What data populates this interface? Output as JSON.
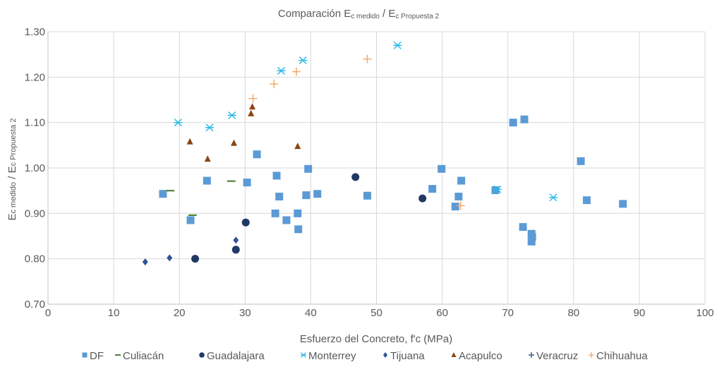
{
  "chart_data": {
    "type": "scatter",
    "title": {
      "main": "Comparación E",
      "sub1": "c medido",
      "sep": " / E",
      "sub2": "c Propuesta 2"
    },
    "xlabel": "Esfuerzo del Concreto, f'c (MPa)",
    "ylabel": {
      "a": "E",
      "b": "c medido",
      "c": " / E",
      "d": "c Propuesta 2"
    },
    "xlim": [
      0,
      100
    ],
    "ylim": [
      0.7,
      1.3
    ],
    "x_ticks": [
      "0",
      "10",
      "20",
      "30",
      "40",
      "50",
      "60",
      "70",
      "80",
      "90",
      "100"
    ],
    "y_ticks": [
      "0.70",
      "0.80",
      "0.90",
      "1.00",
      "1.10",
      "1.20",
      "1.30"
    ],
    "grid": true,
    "legend_position": "bottom",
    "series": [
      {
        "name": "DF",
        "marker": "square",
        "color": "#5b9bd5",
        "points": [
          [
            17.5,
            0.943
          ],
          [
            21.7,
            0.885
          ],
          [
            24.2,
            0.972
          ],
          [
            30.3,
            0.968
          ],
          [
            31.8,
            1.03
          ],
          [
            34.6,
            0.9
          ],
          [
            34.8,
            0.983
          ],
          [
            35.2,
            0.937
          ],
          [
            36.3,
            0.885
          ],
          [
            38.0,
            0.9
          ],
          [
            38.1,
            0.865
          ],
          [
            39.3,
            0.94
          ],
          [
            39.6,
            0.998
          ],
          [
            41.0,
            0.943
          ],
          [
            48.6,
            0.939
          ],
          [
            58.5,
            0.954
          ],
          [
            59.9,
            0.998
          ],
          [
            62.0,
            0.915
          ],
          [
            62.5,
            0.937
          ],
          [
            62.9,
            0.972
          ],
          [
            68.1,
            0.951
          ],
          [
            70.8,
            1.1
          ],
          [
            72.3,
            0.87
          ],
          [
            72.5,
            1.107
          ],
          [
            73.6,
            0.855
          ],
          [
            73.7,
            0.848
          ],
          [
            73.6,
            0.838
          ],
          [
            81.1,
            1.015
          ],
          [
            82.0,
            0.929
          ],
          [
            87.5,
            0.921
          ]
        ]
      },
      {
        "name": "Culiacán",
        "marker": "dash",
        "color": "#548235",
        "points": [
          [
            18.6,
            0.95
          ],
          [
            22.0,
            0.896
          ],
          [
            27.9,
            0.971
          ]
        ]
      },
      {
        "name": "Guadalajara",
        "marker": "circle",
        "color": "#203864",
        "points": [
          [
            22.4,
            0.8
          ],
          [
            28.6,
            0.82
          ],
          [
            30.1,
            0.88
          ],
          [
            46.8,
            0.98
          ],
          [
            57.0,
            0.933
          ]
        ]
      },
      {
        "name": "Monterrey",
        "marker": "asterisk",
        "color": "#29b6e7",
        "points": [
          [
            19.8,
            1.1
          ],
          [
            24.6,
            1.089
          ],
          [
            28.0,
            1.116
          ],
          [
            35.5,
            1.214
          ],
          [
            38.8,
            1.237
          ],
          [
            53.2,
            1.27
          ],
          [
            68.4,
            0.953
          ],
          [
            76.9,
            0.935
          ]
        ]
      },
      {
        "name": "Tijuana",
        "marker": "diamond",
        "color": "#2f5597",
        "points": [
          [
            14.8,
            0.793
          ],
          [
            18.5,
            0.802
          ],
          [
            28.6,
            0.841
          ]
        ]
      },
      {
        "name": "Acapulco",
        "marker": "triangle",
        "color": "#8b4513",
        "points": [
          [
            21.6,
            1.058
          ],
          [
            24.3,
            1.02
          ],
          [
            28.3,
            1.055
          ],
          [
            30.9,
            1.12
          ],
          [
            31.1,
            1.135
          ],
          [
            38.0,
            1.048
          ]
        ]
      },
      {
        "name": "Veracruz",
        "marker": "plus",
        "color": "#1f4e79",
        "points": []
      },
      {
        "name": "Chihuahua",
        "marker": "plus",
        "color": "#f4a460",
        "points": [
          [
            31.2,
            1.153
          ],
          [
            34.4,
            1.185
          ],
          [
            37.8,
            1.212
          ],
          [
            48.6,
            1.24
          ],
          [
            62.8,
            0.917
          ]
        ]
      }
    ]
  }
}
